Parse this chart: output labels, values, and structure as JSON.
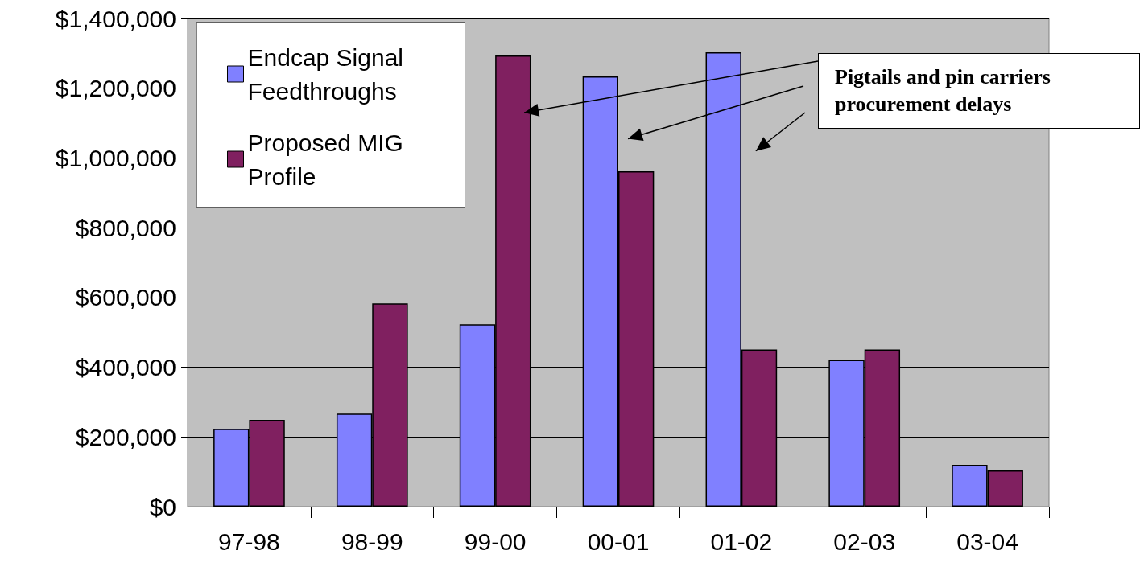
{
  "chart_data": {
    "type": "bar",
    "categories": [
      "97-98",
      "98-99",
      "99-00",
      "00-01",
      "01-02",
      "02-03",
      "03-04"
    ],
    "series": [
      {
        "name": "Endcap Signal Feedthroughs",
        "color": "#8080ff",
        "values": [
          223000,
          267000,
          523000,
          1234000,
          1303000,
          421000,
          120000
        ]
      },
      {
        "name": "Proposed MIG Profile",
        "color": "#802060",
        "values": [
          249000,
          583000,
          1294000,
          962000,
          451000,
          451000,
          104000
        ]
      }
    ],
    "ylim": [
      0,
      1400000
    ],
    "yticks": [
      {
        "value": 0,
        "label": "$0"
      },
      {
        "value": 200000,
        "label": "$200,000"
      },
      {
        "value": 400000,
        "label": "$400,000"
      },
      {
        "value": 600000,
        "label": "$600,000"
      },
      {
        "value": 800000,
        "label": "$800,000"
      },
      {
        "value": 1000000,
        "label": "$1,000,000"
      },
      {
        "value": 1200000,
        "label": "$1,200,000"
      },
      {
        "value": 1400000,
        "label": "$1,400,000"
      }
    ],
    "grid": "y",
    "legend": "top left",
    "annotations": [
      "Pigtails and pin carriers procurement delays"
    ]
  }
}
